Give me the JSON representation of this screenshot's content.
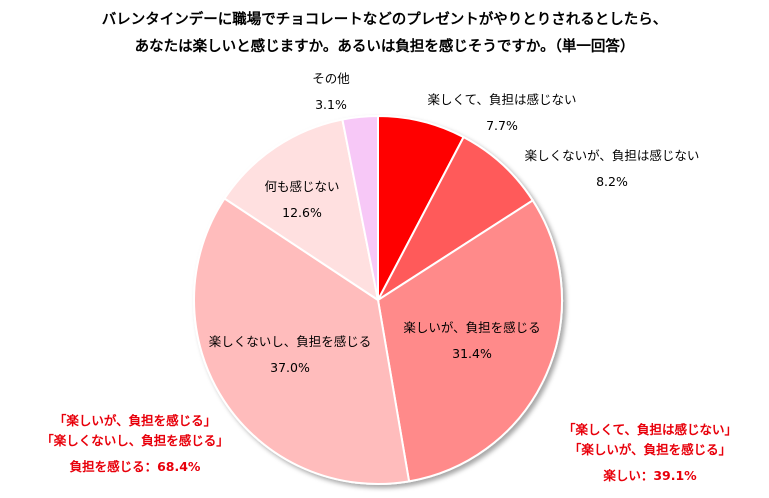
{
  "title_line1": "バレンタインデーに職場でチョコレートなどのプレゼントがやりとりされるとしたら、",
  "title_line2": "あなたは楽しいと感じますか。あるいは負担を感じそうですか。（単一回答）",
  "chart_data": {
    "type": "pie",
    "slices": [
      {
        "label": "楽しくて、負担は感じない",
        "value": 7.7,
        "value_label": "7.7%",
        "color": "#ff0000"
      },
      {
        "label": "楽しくないが、負担は感じない",
        "value": 8.2,
        "value_label": "8.2%",
        "color": "#ff5a5a"
      },
      {
        "label": "楽しいが、負担を感じる",
        "value": 31.4,
        "value_label": "31.4%",
        "color": "#ff8a8a"
      },
      {
        "label": "楽しくないし、負担を感じる",
        "value": 37.0,
        "value_label": "37.0%",
        "color": "#ffbcbc"
      },
      {
        "label": "何も感じない",
        "value": 12.6,
        "value_label": "12.6%",
        "color": "#ffe0e0"
      },
      {
        "label": "その他",
        "value": 3.1,
        "value_label": "3.1%",
        "color": "#f7c8f7"
      }
    ],
    "start_angle": "12 o'clock, clockwise"
  },
  "summary_left": {
    "line1": "「楽しいが、負担を感じる」",
    "line2": "「楽しくないし、負担を感じる」",
    "total": "負担を感じる：68.4%"
  },
  "summary_right": {
    "line1": "「楽しくて、負担は感じない」",
    "line2": "「楽しいが、負担を感じる」",
    "total": "楽しい：39.1%"
  }
}
